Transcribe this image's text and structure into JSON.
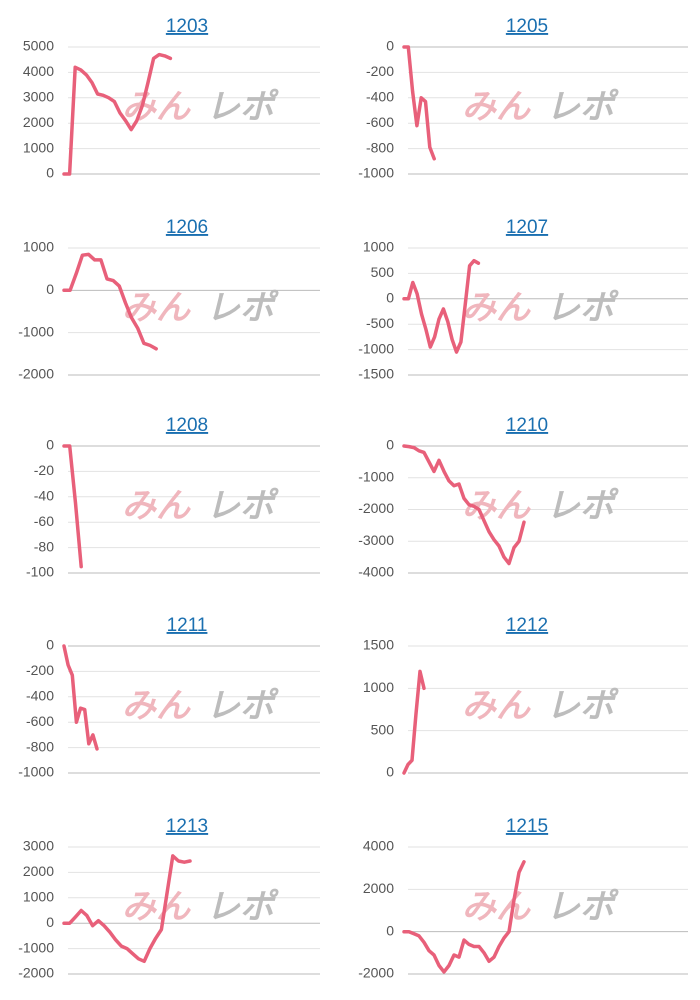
{
  "watermark": {
    "left": "みん",
    "right": "レポ"
  },
  "chart_data": [
    {
      "type": "line",
      "title": "1203",
      "color": "#e8607a",
      "grid": true,
      "xlim": [
        0,
        45
      ],
      "ylim": [
        0,
        5000
      ],
      "yticks": [
        0,
        1000,
        2000,
        3000,
        4000,
        5000
      ],
      "values": [
        0,
        0,
        4200,
        4100,
        3900,
        3600,
        3150,
        3100,
        3000,
        2850,
        2400,
        2100,
        1750,
        2100,
        2700,
        3600,
        4550,
        4700,
        4650,
        4550
      ]
    },
    {
      "type": "line",
      "title": "1205",
      "color": "#e8607a",
      "grid": true,
      "xlim": [
        0,
        65
      ],
      "ylim": [
        -1000,
        0
      ],
      "yticks": [
        0,
        -200,
        -400,
        -600,
        -800,
        -1000
      ],
      "values": [
        0,
        0,
        -350,
        -620,
        -400,
        -430,
        -790,
        -880
      ]
    },
    {
      "type": "line",
      "title": "1206",
      "color": "#e8607a",
      "grid": true,
      "xlim": [
        0,
        41
      ],
      "ylim": [
        -2000,
        1000
      ],
      "yticks": [
        1000,
        0,
        -1000,
        -2000
      ],
      "values": [
        0,
        0,
        400,
        830,
        850,
        720,
        720,
        270,
        230,
        100,
        -300,
        -650,
        -900,
        -1250,
        -1300,
        -1380
      ]
    },
    {
      "type": "line",
      "title": "1207",
      "color": "#e8607a",
      "grid": true,
      "xlim": [
        0,
        64
      ],
      "ylim": [
        -1500,
        1000
      ],
      "yticks": [
        1000,
        500,
        0,
        -500,
        -1000,
        -1500
      ],
      "values": [
        0,
        0,
        320,
        100,
        -300,
        -600,
        -950,
        -750,
        -400,
        -200,
        -450,
        -800,
        -1050,
        -850,
        -100,
        650,
        750,
        700
      ]
    },
    {
      "type": "line",
      "title": "1208",
      "color": "#e8607a",
      "grid": true,
      "xlim": [
        0,
        44
      ],
      "ylim": [
        -100,
        0
      ],
      "yticks": [
        0,
        -20,
        -40,
        -60,
        -80,
        -100
      ],
      "values": [
        0,
        0,
        -45,
        -95
      ]
    },
    {
      "type": "line",
      "title": "1210",
      "color": "#e8607a",
      "grid": true,
      "xlim": [
        0,
        56
      ],
      "ylim": [
        -4000,
        0
      ],
      "yticks": [
        0,
        -1000,
        -2000,
        -3000,
        -4000
      ],
      "values": [
        0,
        -20,
        -50,
        -150,
        -200,
        -500,
        -800,
        -450,
        -800,
        -1100,
        -1250,
        -1200,
        -1650,
        -1850,
        -1900,
        -2000,
        -2350,
        -2700,
        -2950,
        -3150,
        -3500,
        -3700,
        -3200,
        -3000,
        -2400
      ]
    },
    {
      "type": "line",
      "title": "1211",
      "color": "#e8607a",
      "grid": true,
      "xlim": [
        0,
        61
      ],
      "ylim": [
        -1000,
        0
      ],
      "yticks": [
        0,
        -200,
        -400,
        -600,
        -800,
        -1000
      ],
      "values": [
        0,
        -150,
        -230,
        -600,
        -490,
        -500,
        -770,
        -700,
        -810
      ]
    },
    {
      "type": "line",
      "title": "1212",
      "color": "#e8607a",
      "grid": true,
      "xlim": [
        0,
        70
      ],
      "ylim": [
        0,
        1500
      ],
      "yticks": [
        1500,
        1000,
        500,
        0
      ],
      "values": [
        0,
        100,
        150,
        700,
        1200,
        1000
      ]
    },
    {
      "type": "line",
      "title": "1213",
      "color": "#e8607a",
      "grid": true,
      "xlim": [
        0,
        44
      ],
      "ylim": [
        -2000,
        3000
      ],
      "yticks": [
        3000,
        2000,
        1000,
        0,
        -1000,
        -2000
      ],
      "values": [
        0,
        0,
        250,
        500,
        300,
        -100,
        100,
        -100,
        -350,
        -650,
        -900,
        -1000,
        -1200,
        -1400,
        -1500,
        -1000,
        -600,
        -250,
        1200,
        2650,
        2450,
        2400,
        2450
      ]
    },
    {
      "type": "line",
      "title": "1215",
      "color": "#e8607a",
      "grid": true,
      "xlim": [
        0,
        56
      ],
      "ylim": [
        -2000,
        4000
      ],
      "yticks": [
        4000,
        2000,
        0,
        -2000
      ],
      "values": [
        0,
        0,
        -100,
        -200,
        -500,
        -900,
        -1100,
        -1600,
        -1900,
        -1600,
        -1100,
        -1200,
        -400,
        -600,
        -700,
        -700,
        -1000,
        -1400,
        -1200,
        -700,
        -300,
        0,
        1500,
        2800,
        3300
      ]
    }
  ]
}
